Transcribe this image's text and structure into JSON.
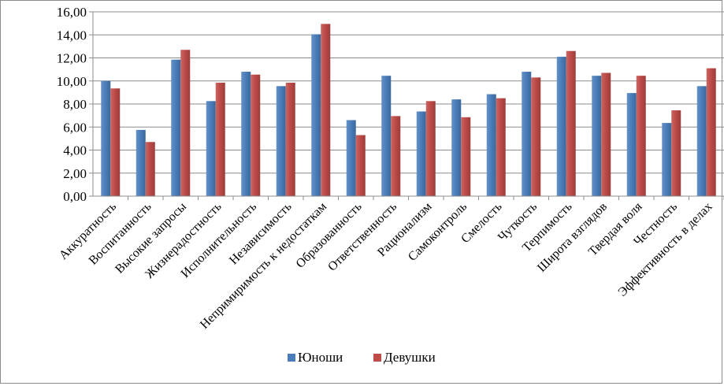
{
  "chart_data": {
    "type": "bar",
    "categories": [
      "Аккуратность",
      "Воспитанность",
      "Высокие запросы",
      "Жизнерадостность",
      "Исполнительность",
      "Независимость",
      "Непримиримость к недостаткам",
      "Образованность",
      "Ответственность",
      "Рационализм",
      "Самоконтроль",
      "Смелость",
      "Чуткость",
      "Терпимость",
      "Широта взглядов",
      "Твердая воля",
      "Честность",
      "Эффективность в делах"
    ],
    "series": [
      {
        "name": "Юноши",
        "color": "#4a7ebb",
        "values": [
          10.0,
          5.75,
          11.85,
          8.25,
          10.8,
          9.55,
          14.05,
          6.6,
          10.45,
          7.35,
          8.4,
          8.85,
          10.8,
          12.1,
          10.45,
          8.95,
          6.35,
          9.55
        ]
      },
      {
        "name": "Девушки",
        "color": "#be4b48",
        "values": [
          9.35,
          4.7,
          12.7,
          9.85,
          10.55,
          9.85,
          14.95,
          5.3,
          6.95,
          8.25,
          6.85,
          8.5,
          10.3,
          12.6,
          10.7,
          10.45,
          7.45,
          11.1
        ]
      }
    ],
    "y_ticks": [
      "0,00",
      "2,00",
      "4,00",
      "6,00",
      "8,00",
      "10,00",
      "12,00",
      "14,00",
      "16,00"
    ],
    "ylim": [
      0,
      16
    ],
    "title": "",
    "xlabel": "",
    "ylabel": "",
    "grid": true,
    "legend_position": "bottom"
  }
}
